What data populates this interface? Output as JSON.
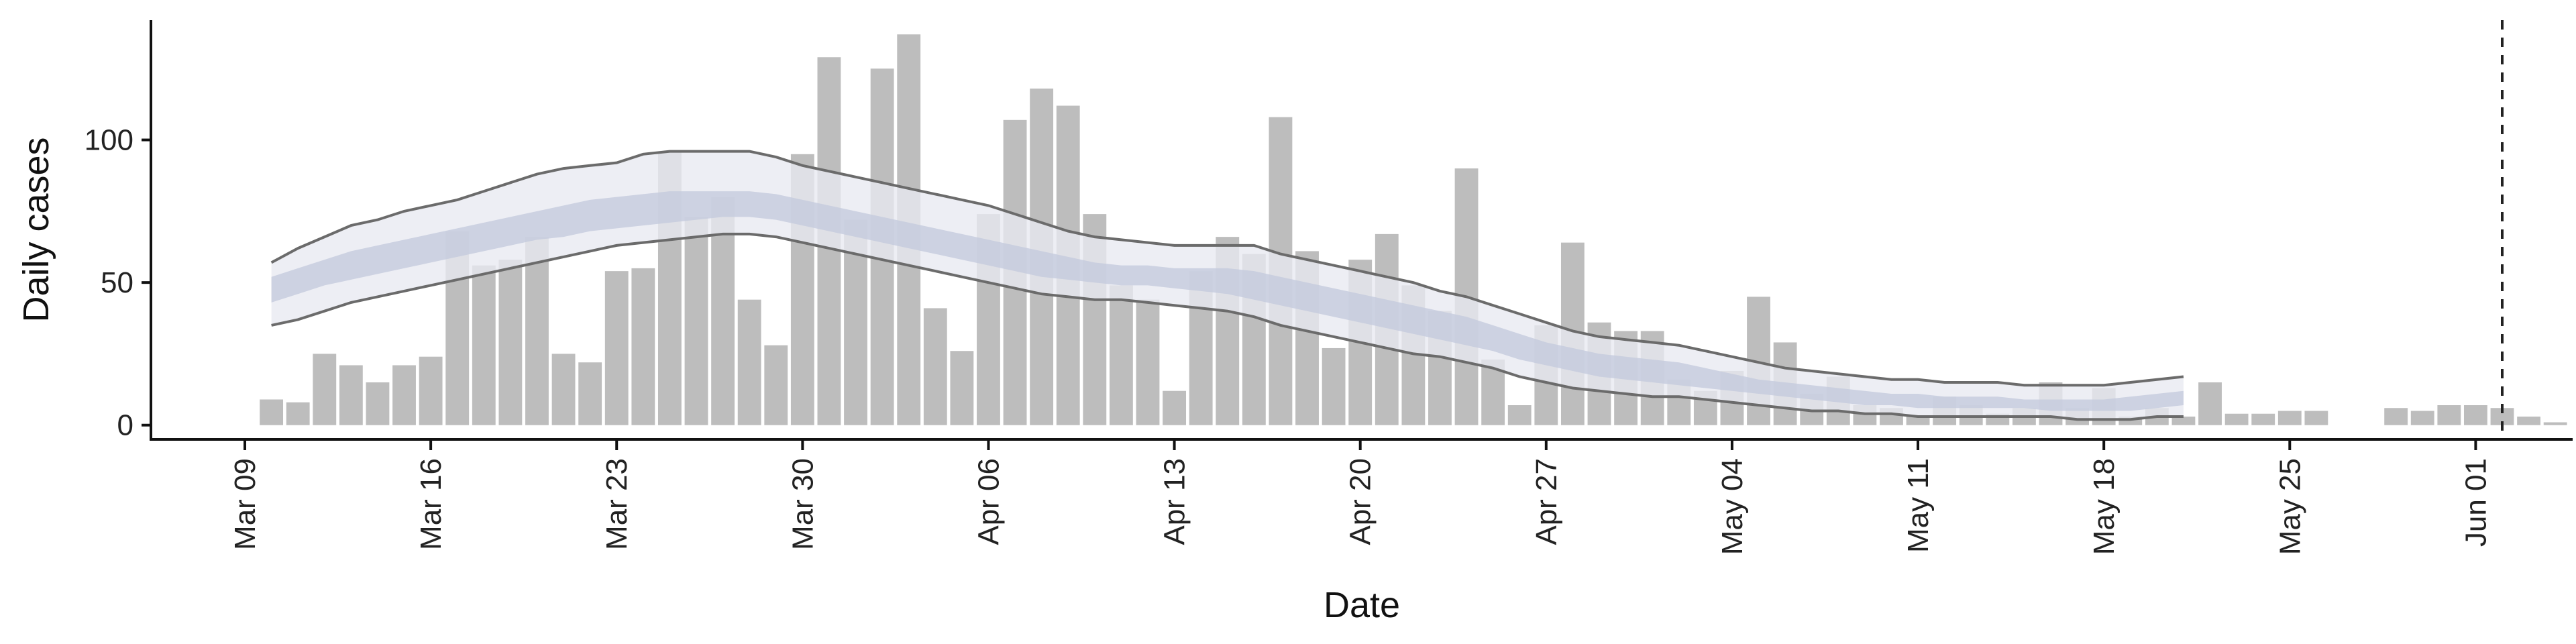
{
  "chart_data": {
    "type": "bar",
    "title": "",
    "xlabel": "Date",
    "ylabel": "Daily cases",
    "ylim": [
      -5,
      142
    ],
    "yticks": [
      0,
      50,
      100
    ],
    "x_range": [
      "2020-03-09",
      "2020-06-02"
    ],
    "x_ticks": [
      {
        "date": "2020-03-09",
        "label": "Mar 09"
      },
      {
        "date": "2020-03-16",
        "label": "Mar 16"
      },
      {
        "date": "2020-03-23",
        "label": "Mar 23"
      },
      {
        "date": "2020-03-30",
        "label": "Mar 30"
      },
      {
        "date": "2020-04-06",
        "label": "Apr 06"
      },
      {
        "date": "2020-04-13",
        "label": "Apr 13"
      },
      {
        "date": "2020-04-20",
        "label": "Apr 20"
      },
      {
        "date": "2020-04-27",
        "label": "Apr 27"
      },
      {
        "date": "2020-05-04",
        "label": "May 04"
      },
      {
        "date": "2020-05-11",
        "label": "May 11"
      },
      {
        "date": "2020-05-18",
        "label": "May 18"
      },
      {
        "date": "2020-05-25",
        "label": "May 25"
      },
      {
        "date": "2020-06-01",
        "label": "Jun 01"
      }
    ],
    "grid": false,
    "bars": {
      "start_date": "2020-03-10",
      "color": "#bdbdbd",
      "values": [
        9,
        8,
        25,
        21,
        15,
        21,
        24,
        68,
        56,
        58,
        66,
        25,
        22,
        54,
        55,
        96,
        73,
        80,
        44,
        28,
        95,
        129,
        72,
        125,
        137,
        41,
        26,
        74,
        107,
        118,
        112,
        74,
        49,
        44,
        12,
        54,
        66,
        60,
        108,
        61,
        27,
        58,
        67,
        49,
        40,
        90,
        23,
        7,
        35,
        64,
        36,
        33,
        33,
        16,
        12,
        19,
        45,
        29,
        11,
        17,
        7,
        6,
        3,
        10,
        7,
        4,
        6,
        15,
        6,
        13,
        3,
        6,
        3,
        15,
        4,
        4,
        5,
        5,
        0,
        0,
        6,
        5,
        7,
        7,
        6,
        3,
        1
      ]
    },
    "nowcast": {
      "start_date": "2020-03-10",
      "end_date": "2020-05-21",
      "outer_upper": [
        57,
        62,
        66,
        70,
        72,
        75,
        77,
        79,
        82,
        85,
        88,
        90,
        91,
        92,
        95,
        96,
        96,
        96,
        96,
        94,
        91,
        89,
        87,
        85,
        83,
        81,
        79,
        77,
        74,
        71,
        68,
        66,
        65,
        64,
        63,
        63,
        63,
        63,
        60,
        58,
        56,
        54,
        52,
        50,
        47,
        45,
        42,
        39,
        36,
        33,
        31,
        30,
        29,
        28,
        26,
        24,
        22,
        20,
        19,
        18,
        17,
        16,
        16,
        15,
        15,
        15,
        14,
        14,
        14,
        14,
        15,
        16,
        17
      ],
      "outer_lower": [
        35,
        37,
        40,
        43,
        45,
        47,
        49,
        51,
        53,
        55,
        57,
        59,
        61,
        63,
        64,
        65,
        66,
        67,
        67,
        66,
        64,
        62,
        60,
        58,
        56,
        54,
        52,
        50,
        48,
        46,
        45,
        44,
        44,
        43,
        42,
        41,
        40,
        38,
        35,
        33,
        31,
        29,
        27,
        25,
        24,
        22,
        20,
        17,
        15,
        13,
        12,
        11,
        10,
        10,
        9,
        8,
        7,
        6,
        5,
        5,
        4,
        4,
        3,
        3,
        3,
        3,
        3,
        3,
        2,
        2,
        2,
        3,
        3
      ],
      "inner_upper": [
        52,
        55,
        58,
        61,
        63,
        65,
        67,
        69,
        71,
        73,
        75,
        77,
        79,
        80,
        81,
        82,
        82,
        82,
        82,
        81,
        79,
        77,
        75,
        73,
        71,
        69,
        67,
        65,
        63,
        61,
        59,
        57,
        56,
        56,
        55,
        55,
        55,
        54,
        52,
        50,
        48,
        46,
        44,
        42,
        40,
        38,
        35,
        32,
        29,
        27,
        25,
        24,
        23,
        22,
        20,
        18,
        16,
        15,
        14,
        13,
        12,
        11,
        11,
        10,
        10,
        10,
        9,
        9,
        9,
        9,
        10,
        11,
        12
      ],
      "inner_lower": [
        43,
        46,
        49,
        51,
        53,
        55,
        57,
        59,
        61,
        63,
        65,
        66,
        68,
        69,
        70,
        71,
        72,
        73,
        73,
        72,
        70,
        68,
        66,
        64,
        62,
        60,
        58,
        56,
        54,
        52,
        51,
        50,
        49,
        49,
        48,
        47,
        46,
        44,
        42,
        40,
        38,
        36,
        34,
        32,
        30,
        28,
        26,
        23,
        21,
        19,
        17,
        16,
        15,
        14,
        13,
        12,
        11,
        10,
        9,
        8,
        7,
        7,
        6,
        6,
        6,
        6,
        6,
        5,
        5,
        5,
        5,
        6,
        7
      ],
      "outer_color": "#e8e9f1",
      "inner_color": "#c4cadd",
      "line_color": "#6b6b6b"
    },
    "vline": {
      "date": "2020-06-02",
      "style": "dashed",
      "color": "#222222"
    }
  }
}
